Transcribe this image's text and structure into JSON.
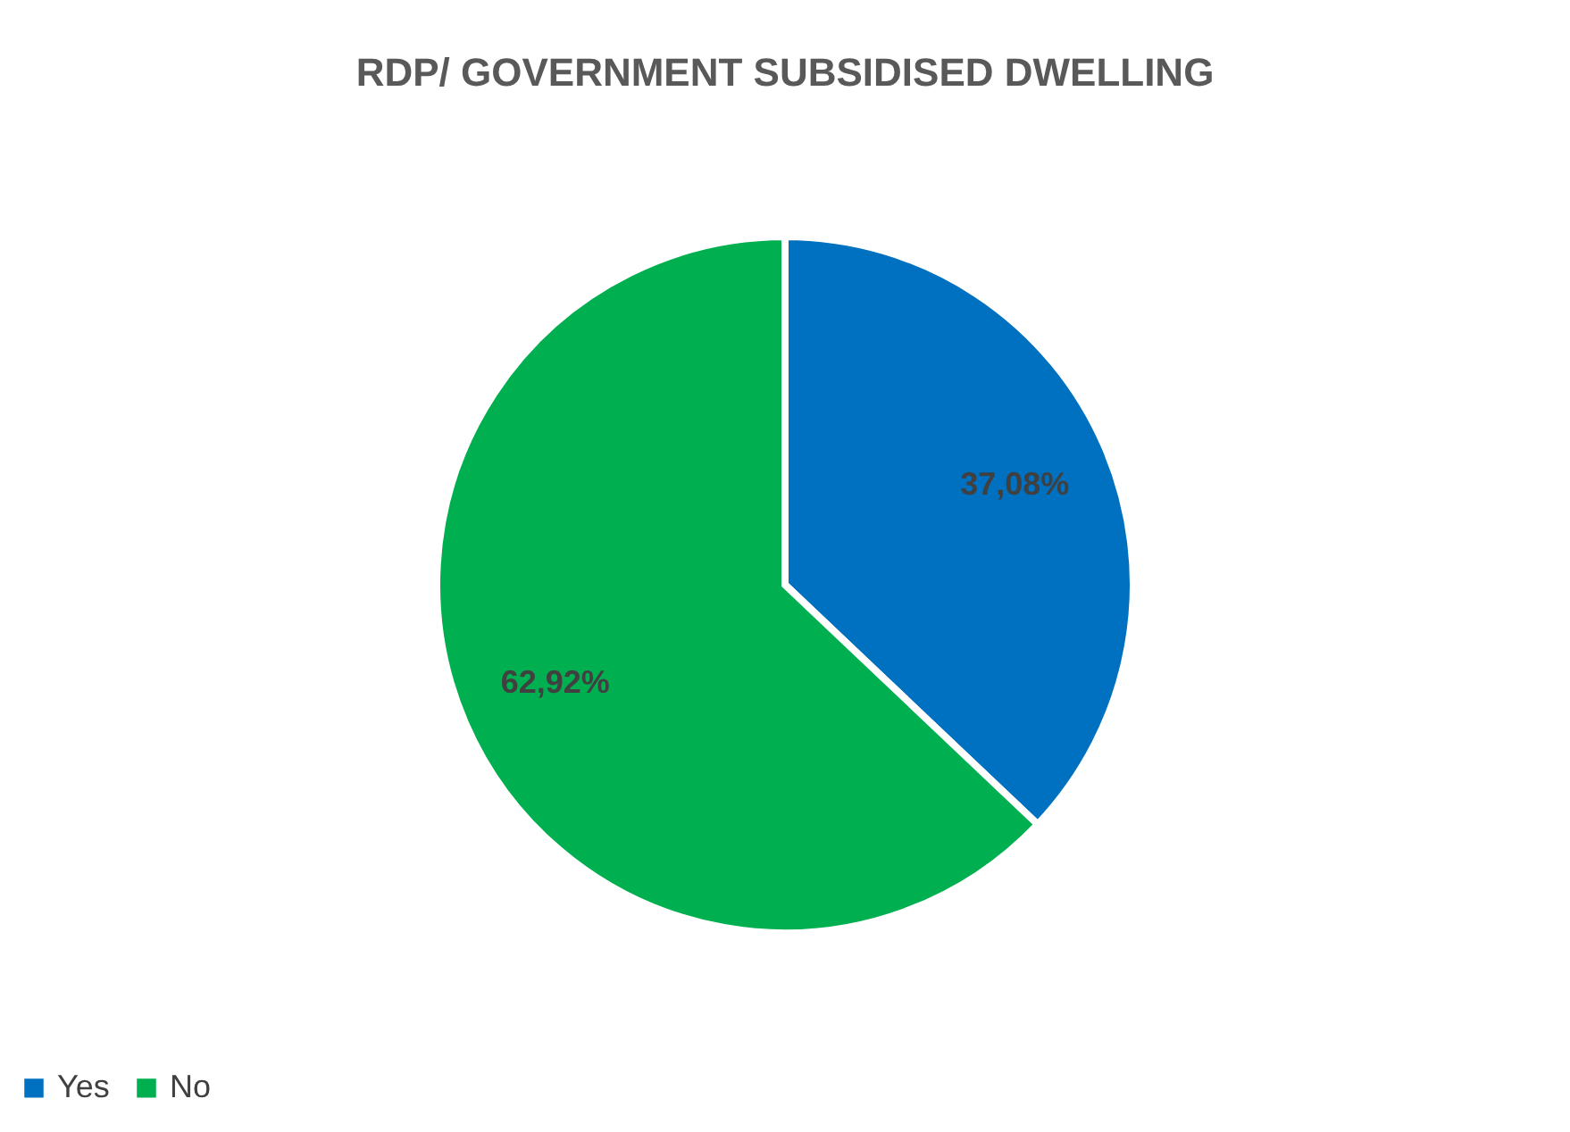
{
  "chart_data": {
    "type": "pie",
    "title": "RDP/ GOVERNMENT SUBSIDISED DWELLING",
    "categories": [
      "Yes",
      "No"
    ],
    "values": [
      37.08,
      62.92
    ],
    "colors": [
      "#0070c0",
      "#00b050"
    ],
    "value_labels": [
      "37,08%",
      "62,92%"
    ],
    "legend": "bottom"
  }
}
